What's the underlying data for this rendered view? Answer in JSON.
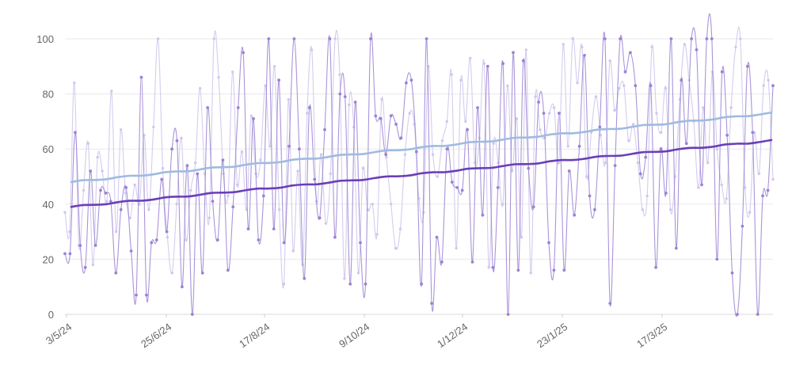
{
  "colors": {
    "series_a_raw": "#cfc8ec",
    "series_a_trend": "#9fbbe0",
    "series_b_raw": "#9b82d3",
    "series_b_trend": "#6a3fb6",
    "grid": "#e9e9e9"
  },
  "chart_data": {
    "type": "line",
    "title": "",
    "xlabel": "",
    "ylabel": "",
    "grid": true,
    "x_tick_labels": [
      "3/5/24",
      "25/6/24",
      "17/8/24",
      "9/10/24",
      "1/12/24",
      "23/1/25",
      "17/3/25"
    ],
    "y_tick_labels": [
      "0",
      "20",
      "40",
      "60",
      "80",
      "100"
    ],
    "x_range": [
      "2024-05-03",
      "2025-05-17"
    ],
    "ylim": [
      0,
      100
    ],
    "series": [
      {
        "style": "raw-light",
        "trend": {
          "start": 48,
          "end": 73
        },
        "values": [
          37,
          30,
          84,
          25,
          45,
          62,
          18,
          57,
          52,
          41,
          81,
          30,
          67,
          44,
          35,
          47,
          40,
          65,
          38,
          68,
          100,
          53,
          28,
          15,
          40,
          64,
          27,
          45,
          55,
          82,
          51,
          35,
          100,
          86,
          51,
          43,
          88,
          47,
          59,
          38,
          72,
          51,
          56,
          83,
          61,
          90,
          38,
          11,
          78,
          23,
          52,
          18,
          73,
          96,
          41,
          58,
          33,
          51,
          100,
          87,
          13,
          76,
          68,
          15,
          53,
          38,
          40,
          29,
          78,
          57,
          40,
          24,
          31,
          58,
          73,
          69,
          42,
          37,
          90,
          58,
          50,
          63,
          70,
          87,
          24,
          85,
          70,
          93,
          55,
          64,
          91,
          17,
          62,
          55,
          40,
          83,
          52,
          71,
          28,
          96,
          15,
          79,
          67,
          64,
          73,
          75,
          55,
          98,
          61,
          100,
          84,
          97,
          50,
          66,
          79,
          65,
          55,
          92,
          74,
          82,
          83,
          63,
          69,
          55,
          38,
          43,
          97,
          73,
          66,
          82,
          38,
          50,
          78,
          98,
          85,
          70,
          46,
          75,
          55,
          88,
          60,
          47,
          42,
          75,
          97,
          100,
          46,
          37,
          66,
          51,
          83,
          85,
          49
        ]
      },
      {
        "style": "raw-dark",
        "trend": {
          "start": 39,
          "end": 63
        },
        "values": [
          22,
          22,
          66,
          25,
          17,
          52,
          25,
          45,
          44,
          41,
          15,
          38,
          46,
          23,
          7,
          86,
          7,
          26,
          27,
          49,
          30,
          60,
          63,
          10,
          54,
          0,
          51,
          15,
          75,
          41,
          27,
          56,
          16,
          39,
          75,
          95,
          31,
          71,
          27,
          43,
          100,
          31,
          85,
          26,
          61,
          100,
          60,
          13,
          75,
          49,
          35,
          67,
          100,
          28,
          80,
          79,
          11,
          77,
          26,
          11,
          100,
          72,
          71,
          58,
          72,
          69,
          64,
          84,
          85,
          59,
          11,
          100,
          4,
          28,
          19,
          60,
          48,
          46,
          45,
          67,
          19,
          75,
          36,
          90,
          17,
          46,
          91,
          0,
          95,
          16,
          92,
          53,
          39,
          77,
          73,
          26,
          16,
          73,
          16,
          52,
          36,
          61,
          94,
          43,
          38,
          68,
          100,
          4,
          54,
          100,
          88,
          95,
          83,
          51,
          57,
          83,
          17,
          60,
          44,
          100,
          24,
          85,
          62,
          100,
          96,
          47,
          100,
          100,
          20,
          88,
          65,
          15,
          0,
          32,
          90,
          66,
          0,
          43,
          45,
          83
        ]
      }
    ]
  }
}
